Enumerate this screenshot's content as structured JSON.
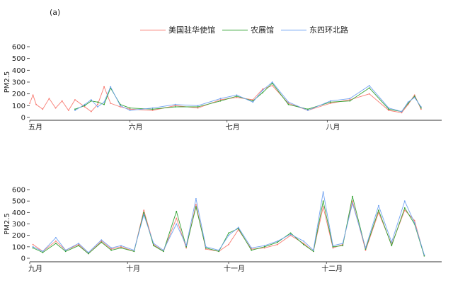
{
  "figure": {
    "panel_label": "(a)",
    "colors": {
      "us_embassy": "#f8766d",
      "agri_exhibition": "#2ca02c",
      "dongsi_huanbei": "#6b9ff1",
      "axis": "#333333"
    }
  },
  "chart_data": [
    {
      "type": "line",
      "title": "",
      "xlabel": "",
      "ylabel": "PM2.5",
      "ylim": [
        0,
        600
      ],
      "yticks": [
        0,
        100,
        200,
        300,
        400,
        500,
        600
      ],
      "x_domain": [
        "2014-05-01",
        "2014-09-01"
      ],
      "xticks": [
        {
          "date": "2014-05-01",
          "label": "五月"
        },
        {
          "date": "2014-06-01",
          "label": "六月"
        },
        {
          "date": "2014-07-01",
          "label": "七月"
        },
        {
          "date": "2014-08-01",
          "label": "八月"
        }
      ],
      "legend": "top",
      "grid": false,
      "series": [
        {
          "name": "美国驻华使馆",
          "color": "#f8766d",
          "x": [
            "2014-05-01",
            "2014-05-02",
            "2014-05-03",
            "2014-05-05",
            "2014-05-07",
            "2014-05-09",
            "2014-05-11",
            "2014-05-13",
            "2014-05-15",
            "2014-05-18",
            "2014-05-20",
            "2014-05-22",
            "2014-05-24",
            "2014-05-26",
            "2014-05-29",
            "2014-06-01",
            "2014-06-08",
            "2014-06-15",
            "2014-06-22",
            "2014-06-29",
            "2014-07-04",
            "2014-07-09",
            "2014-07-12",
            "2014-07-15",
            "2014-07-20",
            "2014-07-26",
            "2014-08-02",
            "2014-08-08",
            "2014-08-14",
            "2014-08-20",
            "2014-08-24",
            "2014-08-26",
            "2014-08-28",
            "2014-08-30"
          ],
          "y": [
            120,
            190,
            110,
            70,
            160,
            80,
            140,
            60,
            150,
            90,
            50,
            110,
            260,
            120,
            90,
            70,
            60,
            100,
            80,
            150,
            170,
            150,
            240,
            270,
            120,
            60,
            120,
            150,
            200,
            60,
            40,
            110,
            190,
            70
          ]
        },
        {
          "name": "农展馆",
          "color": "#2ca02c",
          "x": [
            "2014-05-15",
            "2014-05-18",
            "2014-05-20",
            "2014-05-22",
            "2014-05-24",
            "2014-05-26",
            "2014-05-29",
            "2014-06-01",
            "2014-06-08",
            "2014-06-15",
            "2014-06-22",
            "2014-06-29",
            "2014-07-04",
            "2014-07-09",
            "2014-07-12",
            "2014-07-15",
            "2014-07-20",
            "2014-07-26",
            "2014-08-02",
            "2014-08-08",
            "2014-08-14",
            "2014-08-20",
            "2014-08-24",
            "2014-08-26",
            "2014-08-28",
            "2014-08-30"
          ],
          "y": [
            70,
            100,
            140,
            130,
            110,
            250,
            110,
            80,
            70,
            90,
            90,
            140,
            180,
            140,
            210,
            290,
            110,
            70,
            130,
            140,
            250,
            70,
            50,
            120,
            180,
            80
          ]
        },
        {
          "name": "东四环北路",
          "color": "#6b9ff1",
          "x": [
            "2014-05-15",
            "2014-05-18",
            "2014-05-20",
            "2014-05-22",
            "2014-05-24",
            "2014-05-26",
            "2014-05-29",
            "2014-06-01",
            "2014-06-08",
            "2014-06-15",
            "2014-06-22",
            "2014-06-29",
            "2014-07-04",
            "2014-07-09",
            "2014-07-12",
            "2014-07-15",
            "2014-07-20",
            "2014-07-26",
            "2014-08-02",
            "2014-08-08",
            "2014-08-14",
            "2014-08-20",
            "2014-08-24",
            "2014-08-26",
            "2014-08-28",
            "2014-08-30"
          ],
          "y": [
            60,
            110,
            150,
            90,
            130,
            260,
            100,
            60,
            80,
            110,
            100,
            160,
            190,
            130,
            230,
            300,
            130,
            60,
            140,
            160,
            270,
            80,
            50,
            130,
            170,
            90
          ]
        }
      ]
    },
    {
      "type": "line",
      "title": "",
      "xlabel": "",
      "ylabel": "PM2.5",
      "ylim": [
        0,
        600
      ],
      "yticks": [
        0,
        100,
        200,
        300,
        400,
        500,
        600
      ],
      "x_domain": [
        "2014-09-01",
        "2015-01-01"
      ],
      "xticks": [
        {
          "date": "2014-09-01",
          "label": "九月"
        },
        {
          "date": "2014-10-01",
          "label": "十月"
        },
        {
          "date": "2014-11-01",
          "label": "十一月"
        },
        {
          "date": "2014-12-01",
          "label": "十二月"
        }
      ],
      "legend": "none",
      "grid": false,
      "series": [
        {
          "name": "美国驻华使馆",
          "color": "#f8766d",
          "x": [
            "2014-09-02",
            "2014-09-05",
            "2014-09-09",
            "2014-09-12",
            "2014-09-16",
            "2014-09-19",
            "2014-09-23",
            "2014-09-26",
            "2014-09-29",
            "2014-10-03",
            "2014-10-06",
            "2014-10-09",
            "2014-10-12",
            "2014-10-16",
            "2014-10-19",
            "2014-10-22",
            "2014-10-25",
            "2014-10-29",
            "2014-11-01",
            "2014-11-04",
            "2014-11-08",
            "2014-11-12",
            "2014-11-16",
            "2014-11-20",
            "2014-11-24",
            "2014-11-27",
            "2014-11-30",
            "2014-12-03",
            "2014-12-06",
            "2014-12-09",
            "2014-12-13",
            "2014-12-17",
            "2014-12-21",
            "2014-12-25",
            "2014-12-28",
            "2014-12-31"
          ],
          "y": [
            120,
            60,
            150,
            70,
            120,
            40,
            150,
            80,
            100,
            60,
            420,
            120,
            60,
            350,
            90,
            470,
            80,
            60,
            120,
            250,
            80,
            90,
            120,
            200,
            130,
            60,
            450,
            90,
            120,
            500,
            70,
            400,
            120,
            420,
            330,
            20
          ]
        },
        {
          "name": "农展馆",
          "color": "#2ca02c",
          "x": [
            "2014-09-02",
            "2014-09-05",
            "2014-09-09",
            "2014-09-12",
            "2014-09-16",
            "2014-09-19",
            "2014-09-23",
            "2014-09-26",
            "2014-09-29",
            "2014-10-03",
            "2014-10-06",
            "2014-10-09",
            "2014-10-12",
            "2014-10-16",
            "2014-10-19",
            "2014-10-22",
            "2014-10-25",
            "2014-10-29",
            "2014-11-01",
            "2014-11-04",
            "2014-11-08",
            "2014-11-12",
            "2014-11-16",
            "2014-11-20",
            "2014-11-24",
            "2014-11-27",
            "2014-11-30",
            "2014-12-03",
            "2014-12-06",
            "2014-12-09",
            "2014-12-13",
            "2014-12-17",
            "2014-12-21",
            "2014-12-25",
            "2014-12-28",
            "2014-12-31"
          ],
          "y": [
            90,
            50,
            130,
            60,
            110,
            40,
            140,
            70,
            90,
            60,
            400,
            110,
            60,
            410,
            100,
            450,
            90,
            60,
            220,
            260,
            70,
            100,
            140,
            220,
            120,
            60,
            500,
            100,
            110,
            540,
            80,
            420,
            110,
            440,
            300,
            20
          ]
        },
        {
          "name": "东四环北路",
          "color": "#6b9ff1",
          "x": [
            "2014-09-02",
            "2014-09-05",
            "2014-09-09",
            "2014-09-12",
            "2014-09-16",
            "2014-09-19",
            "2014-09-23",
            "2014-09-26",
            "2014-09-29",
            "2014-10-03",
            "2014-10-06",
            "2014-10-09",
            "2014-10-12",
            "2014-10-16",
            "2014-10-19",
            "2014-10-22",
            "2014-10-25",
            "2014-10-29",
            "2014-11-01",
            "2014-11-04",
            "2014-11-08",
            "2014-11-12",
            "2014-11-16",
            "2014-11-20",
            "2014-11-24",
            "2014-11-27",
            "2014-11-30",
            "2014-12-03",
            "2014-12-06",
            "2014-12-09",
            "2014-12-13",
            "2014-12-17",
            "2014-12-21",
            "2014-12-25",
            "2014-12-28",
            "2014-12-31"
          ],
          "y": [
            100,
            60,
            180,
            70,
            130,
            50,
            160,
            90,
            110,
            70,
            380,
            130,
            70,
            300,
            110,
            520,
            100,
            70,
            200,
            270,
            90,
            110,
            150,
            210,
            150,
            70,
            580,
            110,
            130,
            480,
            90,
            460,
            140,
            500,
            310,
            30
          ]
        }
      ]
    }
  ]
}
